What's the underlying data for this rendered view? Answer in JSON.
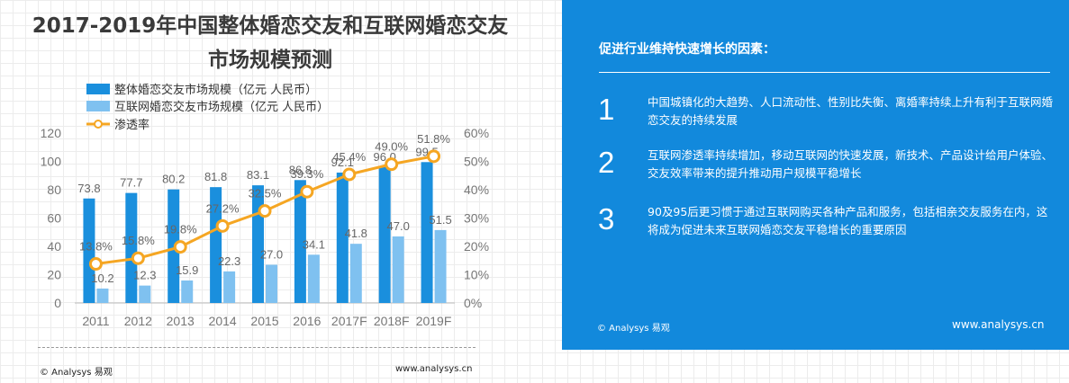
{
  "title_line1": "2017-2019年中国整体婚恋交友和互联网婚恋交友",
  "title_line2": "市场规模预测",
  "chart_data": {
    "type": "bar",
    "categories": [
      "2011",
      "2012",
      "2013",
      "2014",
      "2015",
      "2016",
      "2017F",
      "2018F",
      "2019F"
    ],
    "series": [
      {
        "name": "整体婚恋交友市场规模（亿元 人民币）",
        "type": "bar",
        "axis": "left",
        "color": "#1a8fdd",
        "values": [
          73.8,
          77.7,
          80.2,
          81.8,
          83.1,
          86.8,
          92.1,
          96.0,
          99.5
        ],
        "labels": [
          "73.8",
          "77.7",
          "80.2",
          "81.8",
          "83.1",
          "86.8",
          "92.1",
          "96.0",
          "99.5"
        ]
      },
      {
        "name": "互联网婚恋交友市场规模（亿元 人民币）",
        "type": "bar",
        "axis": "left",
        "color": "#7fc1f0",
        "values": [
          10.2,
          12.3,
          15.9,
          22.3,
          27.0,
          34.1,
          41.8,
          47.0,
          51.5
        ],
        "labels": [
          "10.2",
          "12.3",
          "15.9",
          "22.3",
          "27.0",
          "34.1",
          "41.8",
          "47.0",
          "51.5"
        ]
      },
      {
        "name": "渗透率",
        "type": "line",
        "axis": "right",
        "color": "#f5a623",
        "values": [
          13.8,
          15.8,
          19.8,
          27.2,
          32.5,
          39.3,
          45.4,
          49.0,
          51.8
        ],
        "labels": [
          "13.8%",
          "15.8%",
          "19.8%",
          "27.2%",
          "32.5%",
          "39.3%",
          "45.4%",
          "49.0%",
          "51.8%"
        ]
      }
    ],
    "y_left": {
      "min": 0,
      "max": 120,
      "ticks": [
        "0",
        "20",
        "40",
        "60",
        "80",
        "100",
        "120"
      ]
    },
    "y_right": {
      "min": 0,
      "max": 60,
      "ticks": [
        "0%",
        "10%",
        "20%",
        "30%",
        "40%",
        "50%",
        "60%"
      ]
    },
    "grid": false,
    "legend_position": "top-left"
  },
  "footer": {
    "left": "© Analysys 易观",
    "right": "www.analysys.cn"
  },
  "panel": {
    "title": "促进行业维持快速增长的因素：",
    "items": [
      {
        "num": "1",
        "text": "中国城镇化的大趋势、人口流动性、性别比失衡、离婚率持续上升有利于互联网婚恋交友的持续发展"
      },
      {
        "num": "2",
        "text": "互联网渗透率持续增加，移动互联网的快速发展，新技术、产品设计给用户体验、交友效率带来的提升推动用户规模平稳增长"
      },
      {
        "num": "3",
        "text": "90及95后更习惯于通过互联网购买各种产品和服务，包括相亲交友服务在内，这将成为促进未来互联网婚恋交友平稳增长的重要原因"
      }
    ],
    "footer_left": "© Analysys 易观",
    "footer_right": "www.analysys.cn"
  }
}
